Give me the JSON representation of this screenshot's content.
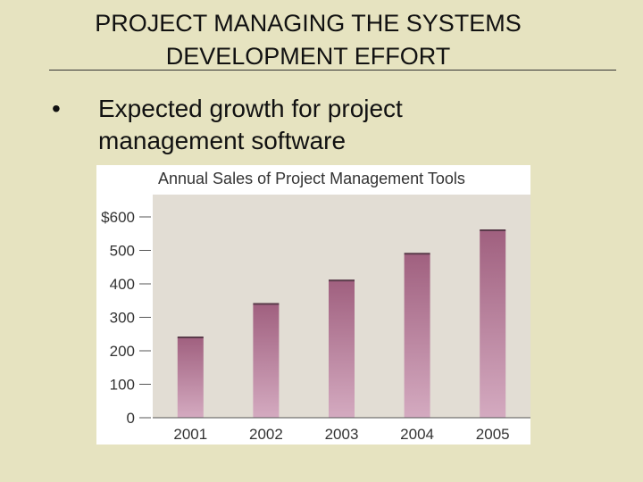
{
  "slide": {
    "title_line1": "PROJECT MANAGING THE SYSTEMS",
    "title_line2": "DEVELOPMENT EFFORT",
    "bullet": "Expected growth for project management software"
  },
  "chart_data": {
    "type": "bar",
    "title": "Annual Sales of Project Management Tools",
    "categories": [
      "2001",
      "2002",
      "2003",
      "2004",
      "2005"
    ],
    "values": [
      240,
      340,
      410,
      490,
      560
    ],
    "ylim": [
      0,
      600
    ],
    "yticks": [
      0,
      100,
      200,
      300,
      400,
      500,
      600
    ],
    "ytick_labels": [
      "0",
      "100",
      "200",
      "300",
      "400",
      "500",
      "$600"
    ],
    "xlabel": "",
    "ylabel": "",
    "grid": false,
    "colors": {
      "bar_top": "#a0607f",
      "bar_bottom": "#d4aac0",
      "plot_background": "#e2ddd4",
      "title_band": "#ffffff"
    }
  }
}
